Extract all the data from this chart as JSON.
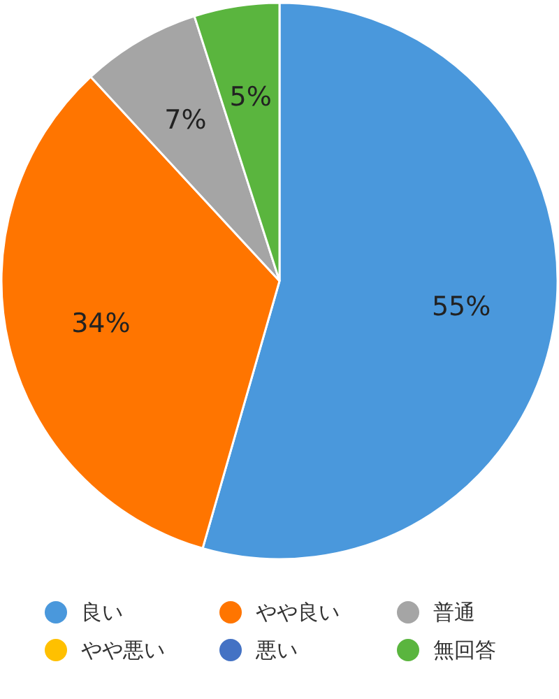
{
  "chart_data": {
    "type": "pie",
    "categories": [
      "良い",
      "やや良い",
      "普通",
      "やや悪い",
      "悪い",
      "無回答"
    ],
    "values": [
      55,
      34,
      7,
      0,
      0,
      5
    ],
    "colors": [
      "#4a98dc",
      "#ff7500",
      "#a5a5a5",
      "#ffc000",
      "#4472c4",
      "#5ab53e"
    ],
    "value_labels": [
      "55%",
      "34%",
      "7%",
      null,
      null,
      "5%"
    ],
    "legend": "bottom"
  }
}
